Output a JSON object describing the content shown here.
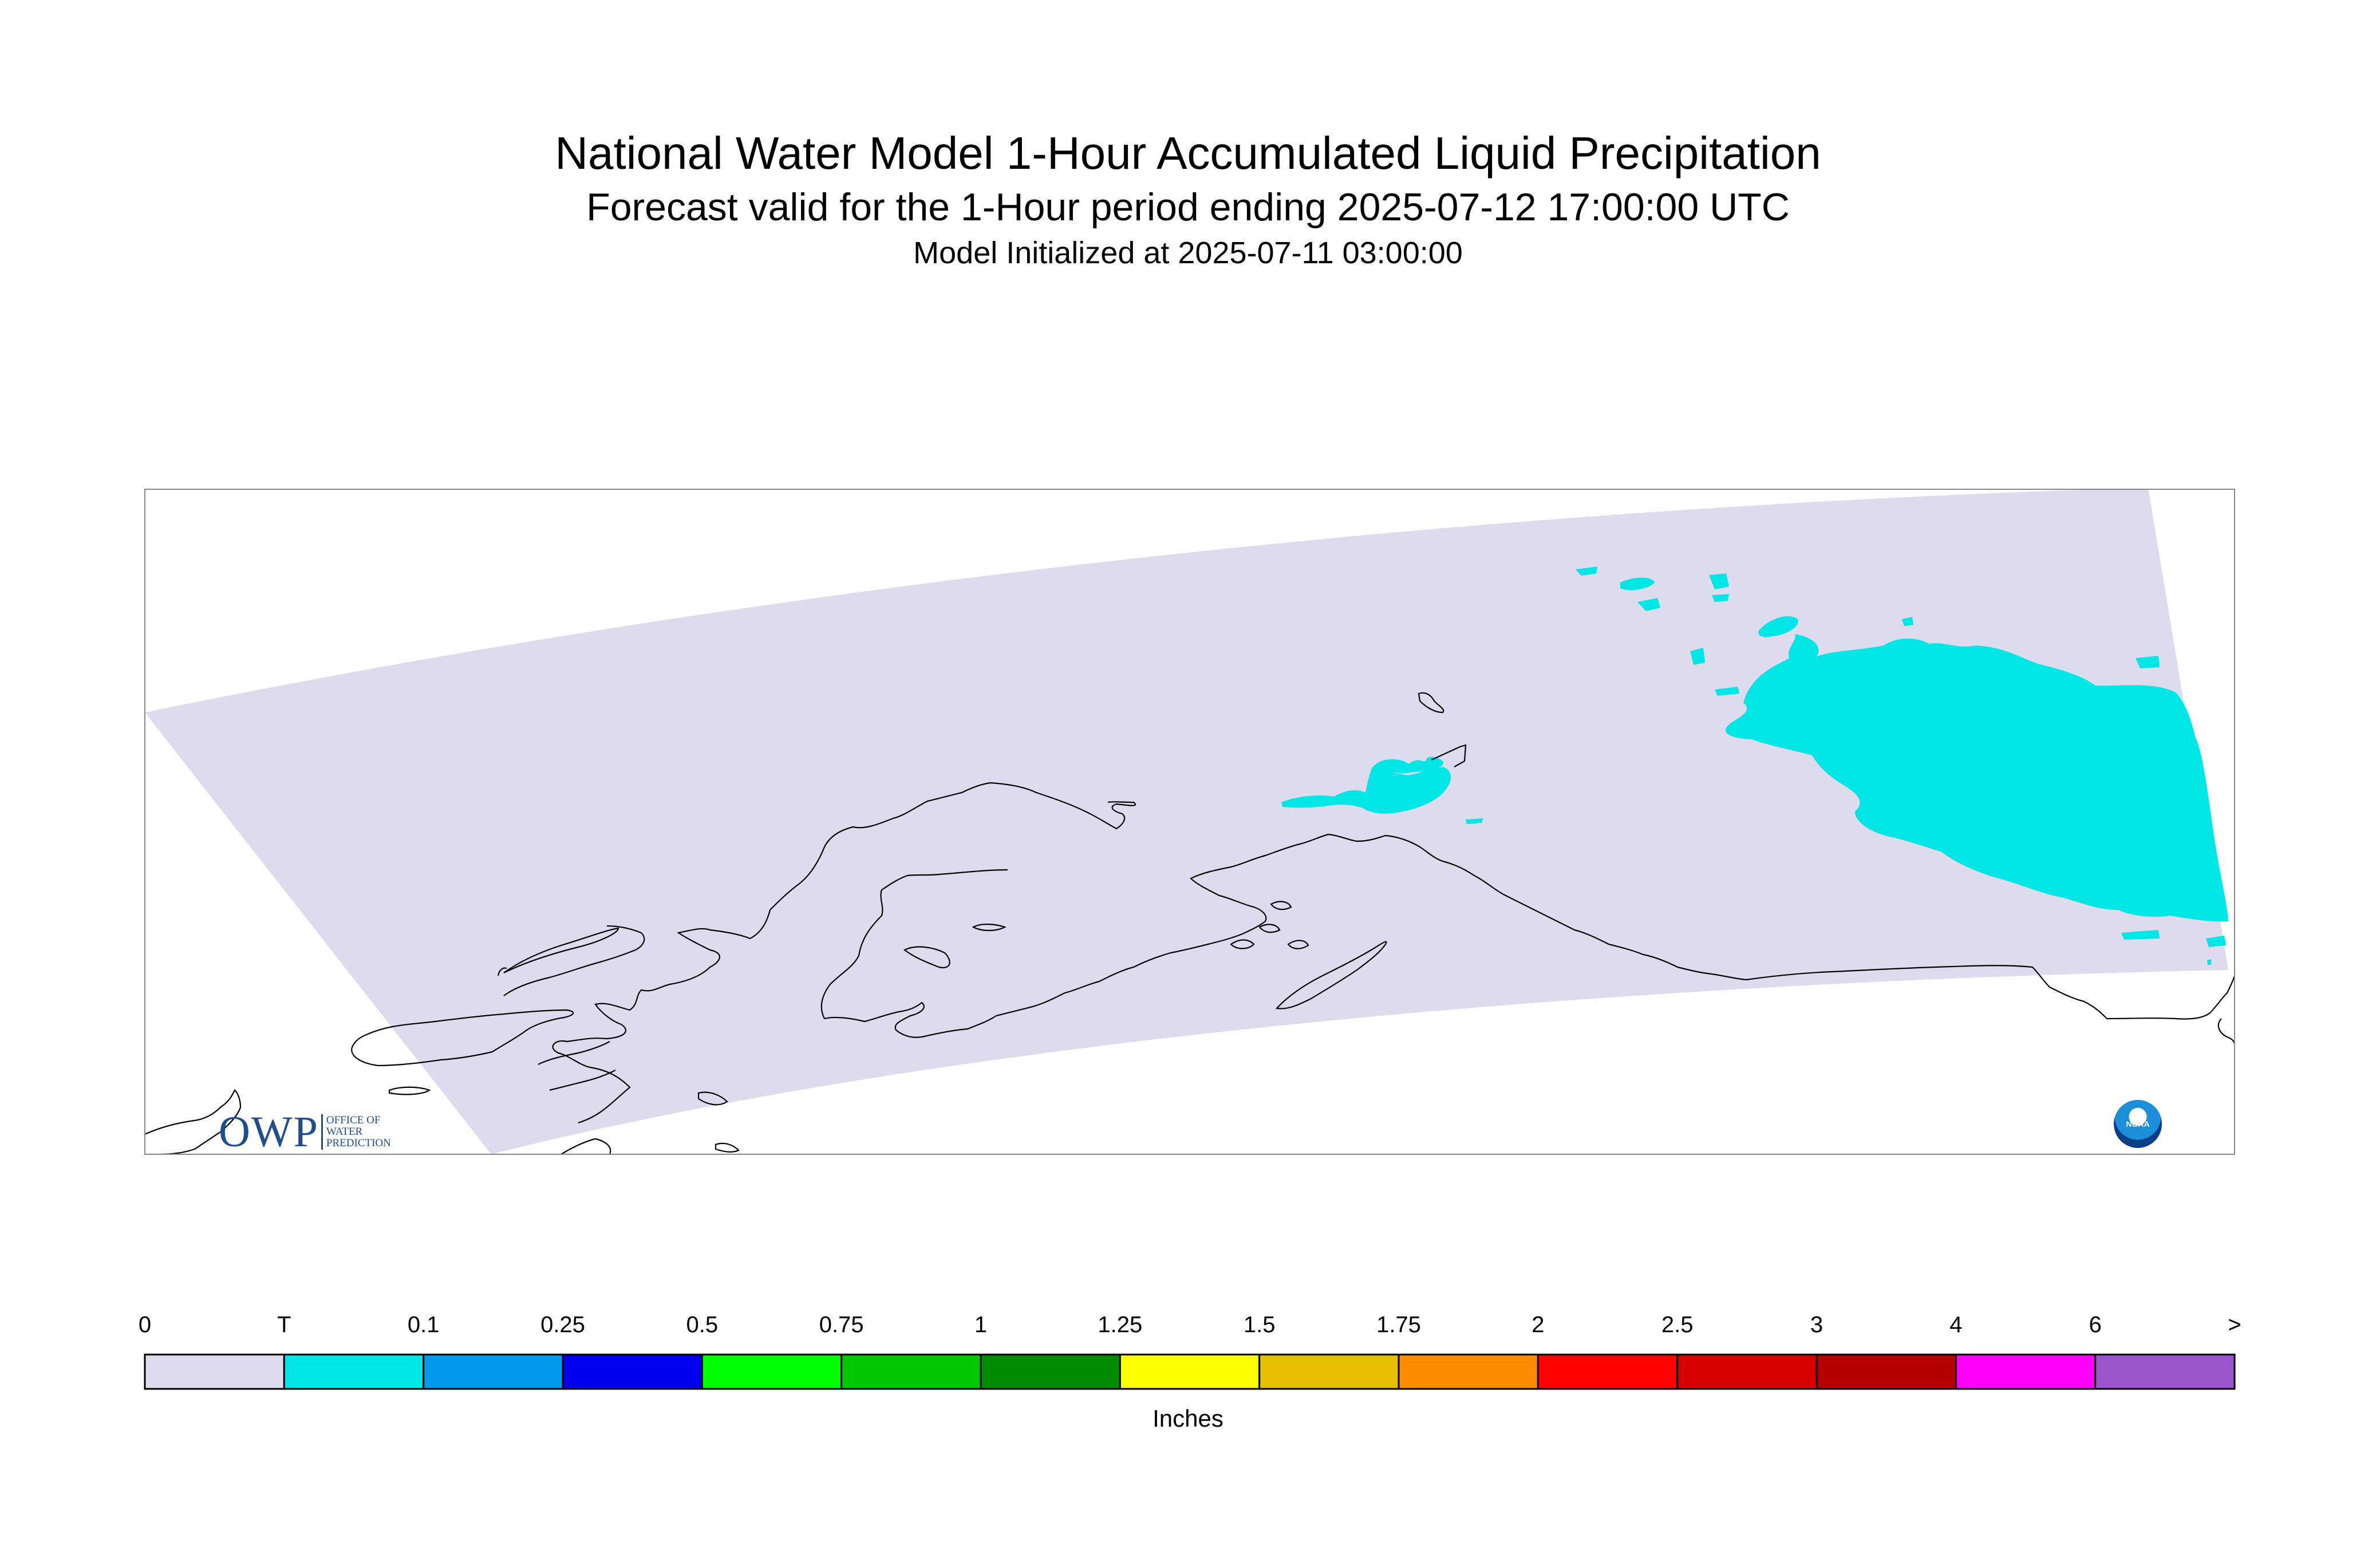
{
  "header": {
    "title": "National Water Model 1-Hour Accumulated Liquid Precipitation",
    "subtitle": "Forecast valid for the 1-Hour period ending 2025-07-12 17:00:00 UTC",
    "initialized": "Model Initialized at 2025-07-11 03:00:00"
  },
  "map": {
    "domain_fill_color": "#dcdcee",
    "precip_fill_color": "#00e5e5",
    "coastline_color": "#000000"
  },
  "legend": {
    "labels": [
      "0",
      "T",
      "0.1",
      "0.25",
      "0.5",
      "0.75",
      "1",
      "1.25",
      "1.5",
      "1.75",
      "2",
      "2.5",
      "3",
      "4",
      "6",
      ">"
    ],
    "colors": [
      "#dcdcee",
      "#00e5e5",
      "#0099ee",
      "#0000ee",
      "#00ff00",
      "#00c800",
      "#008c00",
      "#ffff00",
      "#e6c000",
      "#ff8c00",
      "#ff0000",
      "#d70000",
      "#b40000",
      "#ff00ff",
      "#9955cc"
    ],
    "units": "Inches"
  },
  "logos": {
    "owp_letters": "OWP",
    "owp_line1": "OFFICE OF",
    "owp_line2": "WATER",
    "owp_line3": "PREDICTION",
    "noaa_text": "NOAA"
  }
}
